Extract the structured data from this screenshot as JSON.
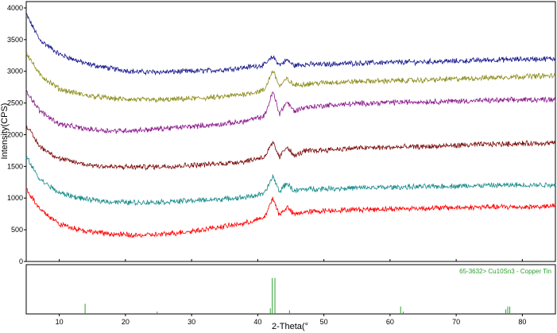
{
  "chart_data": {
    "type": "line",
    "xlabel": "2-Theta(°",
    "ylabel": "Intensity(CPS)",
    "xlim": [
      5,
      85
    ],
    "ylim": [
      0,
      4100
    ],
    "x_ticks": [
      "10",
      "20",
      "30",
      "40",
      "50",
      "60",
      "70",
      "80"
    ],
    "y_ticks": [
      "0",
      "500",
      "1000",
      "1500",
      "2000",
      "2500",
      "3000",
      "3500",
      "4000"
    ],
    "grid": false,
    "series": [
      {
        "color": "#1a1a8c",
        "x": [
          5,
          7,
          10,
          14,
          18,
          22,
          26,
          30,
          34,
          38,
          41,
          42.3,
          43.3,
          44.4,
          45.5,
          47,
          50,
          55,
          60,
          65,
          70,
          75,
          80,
          85
        ],
        "y": [
          3900,
          3500,
          3270,
          3120,
          3040,
          2990,
          2990,
          3000,
          3020,
          3060,
          3100,
          3230,
          3100,
          3180,
          3090,
          3110,
          3110,
          3130,
          3140,
          3150,
          3160,
          3180,
          3190,
          3200
        ]
      },
      {
        "color": "#8c8c1a",
        "x": [
          5,
          7,
          10,
          14,
          18,
          22,
          26,
          30,
          34,
          38,
          41,
          42.3,
          43.3,
          44.4,
          45.5,
          47,
          50,
          55,
          60,
          65,
          70,
          75,
          80,
          85
        ],
        "y": [
          3300,
          2950,
          2720,
          2620,
          2570,
          2550,
          2550,
          2570,
          2590,
          2640,
          2700,
          3020,
          2760,
          2880,
          2780,
          2800,
          2820,
          2840,
          2850,
          2860,
          2880,
          2900,
          2920,
          2930
        ]
      },
      {
        "color": "#8c1a8c",
        "x": [
          5,
          7,
          10,
          14,
          18,
          22,
          26,
          30,
          34,
          38,
          41,
          42.3,
          43.3,
          44.4,
          45.5,
          47,
          50,
          55,
          60,
          65,
          70,
          75,
          80,
          85
        ],
        "y": [
          2700,
          2380,
          2170,
          2090,
          2060,
          2070,
          2100,
          2130,
          2160,
          2210,
          2290,
          2680,
          2330,
          2520,
          2370,
          2430,
          2460,
          2490,
          2510,
          2520,
          2530,
          2540,
          2550,
          2560
        ]
      },
      {
        "color": "#7a0a0a",
        "x": [
          5,
          7,
          10,
          14,
          18,
          22,
          26,
          30,
          34,
          38,
          41,
          42.3,
          43.3,
          44.4,
          45.5,
          47,
          50,
          55,
          60,
          65,
          70,
          75,
          80,
          85
        ],
        "y": [
          2150,
          1820,
          1620,
          1530,
          1490,
          1490,
          1500,
          1520,
          1540,
          1580,
          1650,
          1870,
          1640,
          1820,
          1660,
          1740,
          1760,
          1790,
          1800,
          1810,
          1830,
          1850,
          1860,
          1870
        ]
      },
      {
        "color": "#1a8c8c",
        "x": [
          5,
          7,
          10,
          14,
          18,
          22,
          26,
          30,
          34,
          38,
          41,
          42.3,
          43.3,
          44.4,
          45.5,
          47,
          50,
          55,
          60,
          65,
          70,
          75,
          80,
          85
        ],
        "y": [
          1650,
          1300,
          1080,
          980,
          940,
          930,
          940,
          960,
          980,
          1010,
          1070,
          1340,
          1100,
          1240,
          1110,
          1140,
          1150,
          1160,
          1170,
          1180,
          1190,
          1200,
          1205,
          1210
        ]
      },
      {
        "color": "#ff0000",
        "x": [
          5,
          7,
          10,
          14,
          18,
          22,
          26,
          30,
          34,
          38,
          41,
          42.3,
          43.3,
          44.4,
          45.5,
          47,
          50,
          55,
          60,
          65,
          70,
          75,
          80,
          85
        ],
        "y": [
          1150,
          830,
          590,
          480,
          430,
          410,
          430,
          480,
          540,
          600,
          690,
          1000,
          730,
          860,
          740,
          780,
          800,
          820,
          830,
          840,
          850,
          860,
          860,
          870
        ]
      }
    ],
    "reference": {
      "label": "65-3632> Cu10Sn3 - Copper Tin",
      "color": "#2ca02c",
      "peaks": [
        {
          "x": 13.9,
          "h": 0.22
        },
        {
          "x": 24.8,
          "h": 0.05
        },
        {
          "x": 41.9,
          "h": 0.12
        },
        {
          "x": 42.2,
          "h": 0.78
        },
        {
          "x": 42.6,
          "h": 0.78
        },
        {
          "x": 44.8,
          "h": 0.08
        },
        {
          "x": 61.6,
          "h": 0.16
        },
        {
          "x": 62.0,
          "h": 0.05
        },
        {
          "x": 77.5,
          "h": 0.1
        },
        {
          "x": 77.8,
          "h": 0.16
        },
        {
          "x": 78.1,
          "h": 0.16
        }
      ]
    }
  }
}
